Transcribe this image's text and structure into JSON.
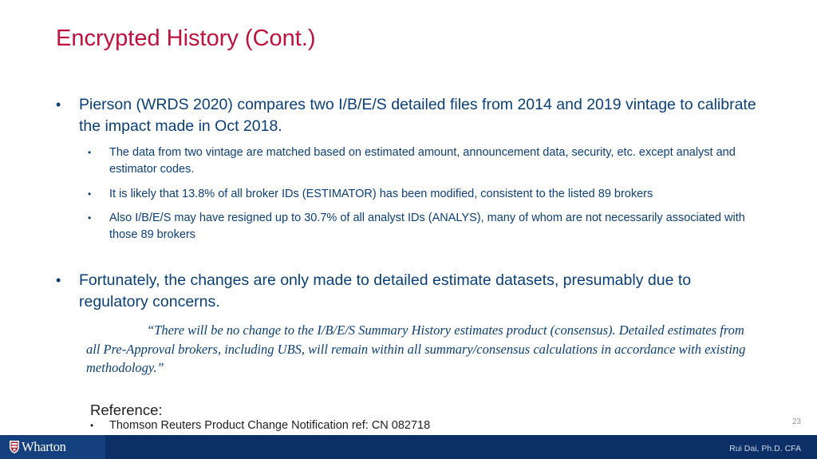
{
  "slide": {
    "title": "Encrypted History (Cont.)",
    "bullets": [
      {
        "text": "Pierson (WRDS 2020) compares two I/B/E/S detailed files from 2014 and 2019 vintage to calibrate the impact made in Oct 2018.",
        "sub": [
          "The data from two vintage are matched based on estimated amount, announcement data, security, etc. except analyst and estimator codes.",
          "It is likely that 13.8% of all broker IDs (ESTIMATOR) has been modified, consistent to the listed 89 brokers",
          "Also I/B/E/S may have resigned up to 30.7% of all analyst IDs (ANALYS), many of whom are not necessarily associated with those 89 brokers"
        ]
      },
      {
        "text": "Fortunately, the changes are only made to detailed estimate datasets, presumably due to regulatory concerns."
      }
    ],
    "quote": "“There will be no change to the I/B/E/S Summary History estimates product (consensus). Detailed estimates from all Pre-Approval brokers, including UBS, will remain within all summary/consensus calculations in accordance with existing methodology.”",
    "reference": {
      "heading": "Reference:",
      "items": [
        "Thomson Reuters Product Change Notification ref: CN 082718"
      ]
    },
    "bullet_glyph": "•",
    "page_number": "23"
  },
  "footer": {
    "logo_text": "Wharton",
    "logo_icon": "shield-icon",
    "author": "Rui Dai, Ph.D. CFA"
  },
  "colors": {
    "title": "#c0123c",
    "body_text": "#0b3f78",
    "footer_bar": "#0b2f66"
  }
}
